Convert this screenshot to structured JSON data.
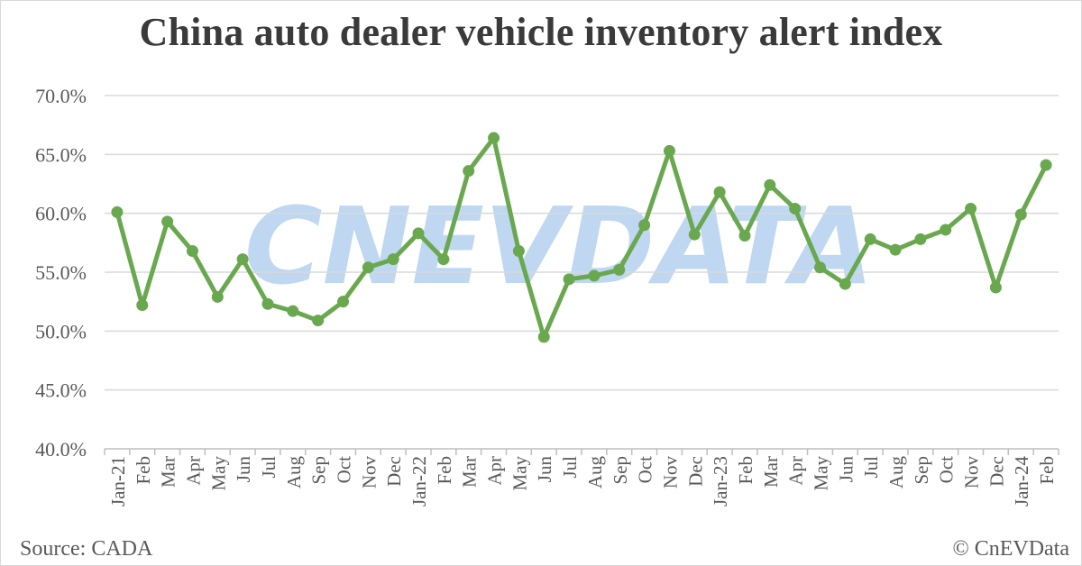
{
  "title": "China auto dealer vehicle inventory alert index",
  "source": "Source: CADA",
  "copyright": "© CnEVData",
  "watermark": "CNEVDATA",
  "colors": {
    "line": "#6aa84f",
    "grid": "#d9d9d9",
    "watermark": "#a9c9ec"
  },
  "chart_data": {
    "type": "line",
    "categories": [
      "Jan-21",
      "Feb",
      "Mar",
      "Apr",
      "May",
      "Jun",
      "Jul",
      "Aug",
      "Sep",
      "Oct",
      "Nov",
      "Dec",
      "Jan-22",
      "Feb",
      "Mar",
      "Apr",
      "May",
      "Jun",
      "Jul",
      "Aug",
      "Sep",
      "Oct",
      "Nov",
      "Dec",
      "Jan-23",
      "Feb",
      "Mar",
      "Apr",
      "May",
      "Jun",
      "Jul",
      "Aug",
      "Sep",
      "Oct",
      "Nov",
      "Dec",
      "Jan-24",
      "Feb"
    ],
    "values": [
      60.1,
      52.2,
      59.3,
      56.8,
      52.9,
      56.1,
      52.3,
      51.7,
      50.9,
      52.5,
      55.4,
      56.1,
      58.3,
      56.1,
      63.6,
      66.4,
      56.8,
      49.5,
      54.4,
      54.7,
      55.2,
      59.0,
      65.3,
      58.2,
      61.8,
      58.1,
      62.4,
      60.4,
      55.4,
      54.0,
      57.8,
      56.9,
      57.8,
      58.6,
      60.4,
      53.7,
      59.9,
      64.1
    ],
    "ylim": [
      40,
      70
    ],
    "yticks": [
      "40.0%",
      "45.0%",
      "50.0%",
      "55.0%",
      "60.0%",
      "65.0%",
      "70.0%"
    ],
    "ytick_values": [
      40,
      45,
      50,
      55,
      60,
      65,
      70
    ],
    "grid": true,
    "legend": "none"
  }
}
